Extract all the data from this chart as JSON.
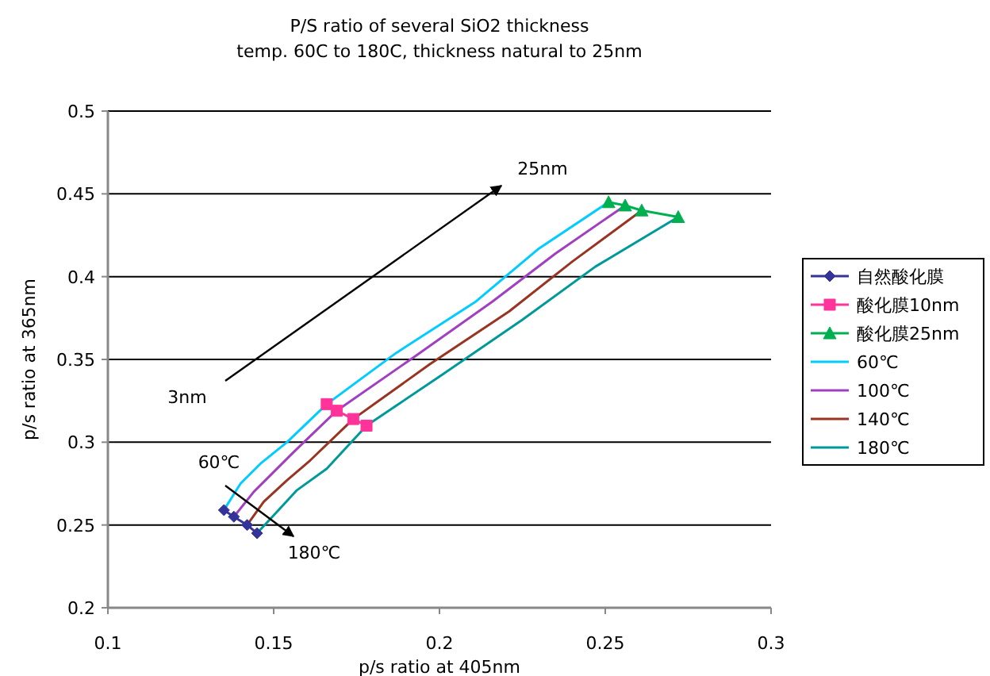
{
  "chart_data": {
    "type": "line",
    "title": "P/S ratio of several SiO2 thickness",
    "subtitle": "temp. 60C to 180C, thickness natural to 25nm",
    "xlabel": "p/s ratio at 405nm",
    "ylabel": "p/s ratio at 365nm",
    "xlim": [
      0.1,
      0.3
    ],
    "xticks": [
      0.1,
      0.15,
      0.2,
      0.25,
      0.3
    ],
    "ylim": [
      0.2,
      0.5
    ],
    "yticks": [
      0.2,
      0.25,
      0.3,
      0.35,
      0.4,
      0.45,
      0.5
    ],
    "grid": "y",
    "legend": "right",
    "annotations": [
      "3nm",
      "25nm",
      "60℃",
      "180℃"
    ],
    "series": [
      {
        "name": "自然酸化膜",
        "color": "#333399",
        "marker": "diamond",
        "x": [
          0.135,
          0.138,
          0.142,
          0.145
        ],
        "values": [
          0.259,
          0.255,
          0.25,
          0.245
        ]
      },
      {
        "name": "酸化膜10nm",
        "color": "#ff3399",
        "marker": "square",
        "x": [
          0.166,
          0.169,
          0.174,
          0.178
        ],
        "values": [
          0.323,
          0.319,
          0.314,
          0.31
        ]
      },
      {
        "name": "酸化膜25nm",
        "color": "#00b050",
        "marker": "triangle",
        "x": [
          0.251,
          0.256,
          0.261,
          0.272
        ],
        "values": [
          0.445,
          0.443,
          0.44,
          0.436
        ]
      },
      {
        "name": "60℃",
        "color": "#00ccff",
        "x": [
          0.135,
          0.14,
          0.146,
          0.154,
          0.166,
          0.187,
          0.211,
          0.23,
          0.251
        ],
        "values": [
          0.259,
          0.275,
          0.287,
          0.3,
          0.323,
          0.354,
          0.385,
          0.417,
          0.445
        ]
      },
      {
        "name": "100℃",
        "color": "#a040c0",
        "x": [
          0.138,
          0.144,
          0.15,
          0.156,
          0.169,
          0.192,
          0.216,
          0.235,
          0.256
        ],
        "values": [
          0.255,
          0.27,
          0.282,
          0.294,
          0.319,
          0.351,
          0.385,
          0.414,
          0.443
        ]
      },
      {
        "name": "140℃",
        "color": "#993322",
        "x": [
          0.142,
          0.147,
          0.154,
          0.161,
          0.174,
          0.197,
          0.221,
          0.24,
          0.261
        ],
        "values": [
          0.25,
          0.264,
          0.277,
          0.289,
          0.314,
          0.347,
          0.379,
          0.409,
          0.44
        ]
      },
      {
        "name": "180℃",
        "color": "#009999",
        "x": [
          0.145,
          0.151,
          0.157,
          0.166,
          0.178,
          0.201,
          0.225,
          0.247,
          0.272
        ],
        "values": [
          0.245,
          0.258,
          0.271,
          0.284,
          0.31,
          0.341,
          0.374,
          0.406,
          0.436
        ]
      }
    ]
  }
}
